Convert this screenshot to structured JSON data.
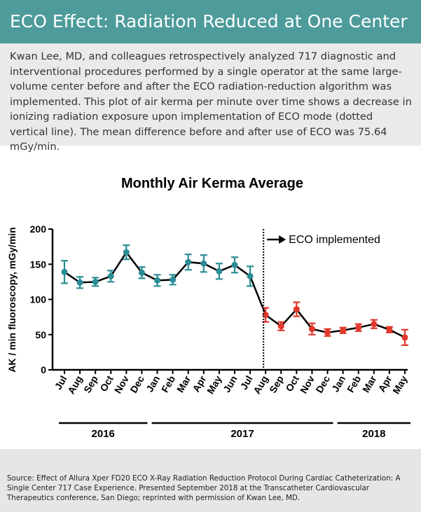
{
  "header": {
    "title": "ECO Effect: Radiation Reduced at One Center"
  },
  "description": "Kwan Lee, MD, and colleagues retrospectively analyzed 717 diagnostic and interventional procedures performed by a single operator at the same large-volume center before and after the ECO radiation-reduction algorithm was implemented. This plot of air kerma per minute over time shows a decrease in ionizing radiation exposure upon implementation of ECO mode (dotted vertical line). The mean difference before and after use of ECO was 75.64 mGy/min.",
  "source": "Source: Effect of Allura Xper FD20 ECO X-Ray Radiation Reduction Protocol During Cardiac Catheterization: A Single Center 717 Case Experience. Presented September 2018 at the Transcatheter Cardiovascular Therapeutics conference, San Diego; reprinted with permission of Kwan Lee, MD.",
  "chart_data": {
    "type": "line",
    "title": "Monthly Air Kerma Average",
    "y_label": "AK / min fluoroscopy, mGy/min",
    "categories": [
      "Jul",
      "Aug",
      "Sep",
      "Oct",
      "Nov",
      "Dec",
      "Jan",
      "Feb",
      "Mar",
      "Apr",
      "May",
      "Jun",
      "Jul",
      "Aug",
      "Sep",
      "Oct",
      "Nov",
      "Dec",
      "Jan",
      "Feb",
      "Mar",
      "Apr",
      "May"
    ],
    "values": [
      139,
      124,
      125,
      133,
      167,
      138,
      127,
      128,
      153,
      151,
      140,
      149,
      133,
      78,
      62,
      86,
      58,
      53,
      56,
      60,
      65,
      57,
      46
    ],
    "errors": [
      16,
      8,
      6,
      8,
      10,
      8,
      8,
      7,
      11,
      12,
      11,
      11,
      14,
      10,
      6,
      10,
      8,
      5,
      4,
      5,
      6,
      4,
      11
    ],
    "colors": [
      "#2a8d95",
      "#2a8d95",
      "#2a8d95",
      "#2a8d95",
      "#2a8d95",
      "#2a8d95",
      "#2a8d95",
      "#2a8d95",
      "#2a8d95",
      "#2a8d95",
      "#2a8d95",
      "#2a8d95",
      "#2a8d95",
      "#e1372c",
      "#e1372c",
      "#e1372c",
      "#e1372c",
      "#e1372c",
      "#e1372c",
      "#e1372c",
      "#e1372c",
      "#e1372c",
      "#e1372c"
    ],
    "line_color": "#000000",
    "annotation": "ECO implemented",
    "year_groups": [
      {
        "label": "2016",
        "start": 0,
        "end": 5
      },
      {
        "label": "2017",
        "start": 6,
        "end": 17
      },
      {
        "label": "2018",
        "start": 18,
        "end": 22
      }
    ],
    "ylim": [
      0,
      200
    ],
    "yticks": [
      0,
      50,
      100,
      150,
      200
    ]
  }
}
